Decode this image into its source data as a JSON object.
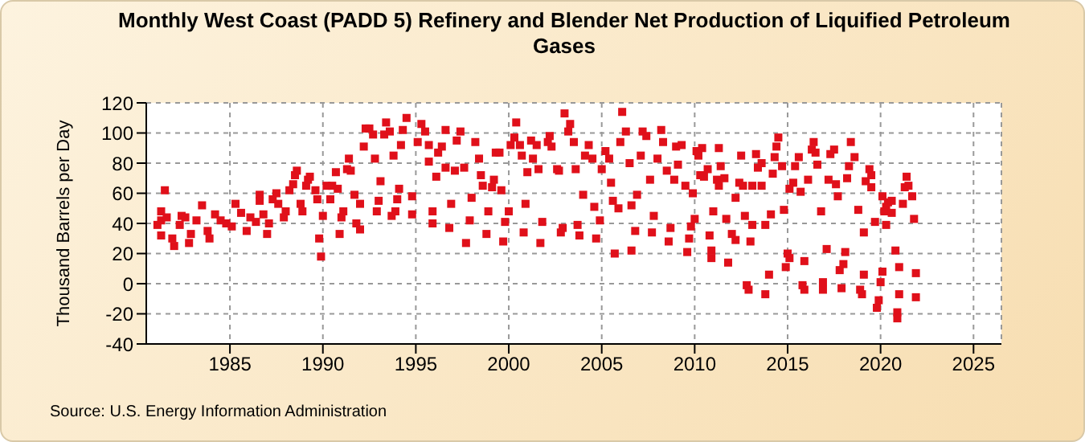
{
  "chart_data": {
    "type": "scatter",
    "title": "Monthly West Coast (PADD 5) Refinery and Blender Net Production of Liquified Petroleum Gases",
    "ylabel": "Thousand Barrels per Day",
    "annotations": [
      "Source: U.S. Energy Information Administration"
    ],
    "x": [
      1981.1,
      1981.3,
      1981.3,
      1981.5,
      1981.3,
      1981.6,
      1981.9,
      1982.0,
      1982.3,
      1982.4,
      1982.6,
      1982.8,
      1982.9,
      1983.2,
      1983.5,
      1983.8,
      1983.9,
      1984.2,
      1984.5,
      1984.8,
      1985.1,
      1985.3,
      1985.6,
      1985.9,
      1986.1,
      1986.4,
      1986.6,
      1986.6,
      1986.8,
      1987.0,
      1987.1,
      1987.3,
      1987.5,
      1987.6,
      1987.9,
      1988.0,
      1988.2,
      1988.4,
      1988.5,
      1988.6,
      1988.8,
      1988.9,
      1989.1,
      1989.2,
      1989.3,
      1989.6,
      1989.7,
      1989.8,
      1989.9,
      1990.0,
      1990.2,
      1990.4,
      1990.5,
      1990.7,
      1990.8,
      1990.9,
      1991.0,
      1991.1,
      1991.3,
      1991.4,
      1991.5,
      1991.7,
      1991.8,
      1992.0,
      1992.0,
      1992.2,
      1992.3,
      1992.5,
      1992.7,
      1992.8,
      1992.9,
      1993.0,
      1993.1,
      1993.3,
      1993.4,
      1993.6,
      1993.7,
      1993.8,
      1994.0,
      1994.1,
      1994.2,
      1994.3,
      1994.5,
      1993.9,
      1994.8,
      1994.8,
      1995.1,
      1995.3,
      1995.5,
      1995.7,
      1995.7,
      1995.9,
      1995.9,
      1996.1,
      1996.2,
      1996.4,
      1996.6,
      1996.6,
      1996.8,
      1996.9,
      1997.1,
      1997.2,
      1997.4,
      1997.6,
      1997.7,
      1997.9,
      1998.0,
      1998.2,
      1998.4,
      1998.5,
      1998.6,
      1998.8,
      1998.9,
      1999.1,
      1999.2,
      1999.3,
      1999.5,
      1999.6,
      1999.7,
      1999.8,
      2000.0,
      2000.1,
      2000.3,
      2000.4,
      2000.6,
      2000.7,
      2000.8,
      2000.9,
      2001.0,
      2001.2,
      2001.3,
      2001.5,
      2001.6,
      2001.7,
      2001.8,
      2002.1,
      2002.2,
      2002.3,
      2002.6,
      2002.7,
      2002.8,
      2002.9,
      2003.0,
      2003.2,
      2003.3,
      2003.5,
      2003.6,
      2003.7,
      2003.8,
      2004.0,
      2004.1,
      2004.3,
      2004.5,
      2004.6,
      2004.7,
      2004.9,
      2005.0,
      2005.2,
      2005.4,
      2005.5,
      2005.6,
      2005.7,
      2005.9,
      2006.0,
      2006.1,
      2006.3,
      2006.5,
      2006.6,
      2006.6,
      2006.8,
      2006.9,
      2007.1,
      2007.2,
      2007.4,
      2007.6,
      2007.7,
      2007.8,
      2008.0,
      2008.2,
      2008.3,
      2008.5,
      2008.6,
      2008.7,
      2008.9,
      2009.0,
      2009.1,
      2009.3,
      2009.5,
      2009.6,
      2009.7,
      2009.9,
      2010.1,
      2010.2,
      2010.3,
      2009.8,
      2010.0,
      2010.4,
      2010.5,
      2010.7,
      2010.8,
      2010.9,
      2010.9,
      2011.0,
      2011.2,
      2011.3,
      2011.3,
      2011.4,
      2011.6,
      2011.7,
      2011.8,
      2012.0,
      2012.2,
      2012.2,
      2012.4,
      2012.5,
      2012.6,
      2012.7,
      2012.8,
      2012.9,
      2013.0,
      2013.1,
      2013.1,
      2013.3,
      2013.4,
      2013.6,
      2013.6,
      2013.8,
      2013.8,
      2014.0,
      2014.1,
      2014.2,
      2014.3,
      2014.4,
      2014.5,
      2014.7,
      2014.8,
      2014.9,
      2015.0,
      2015.1,
      2015.1,
      2015.3,
      2015.4,
      2015.6,
      2015.7,
      2015.8,
      2015.9,
      2015.9,
      2016.1,
      2016.3,
      2016.4,
      2016.5,
      2016.6,
      2016.8,
      2016.9,
      2016.9,
      2017.1,
      2017.2,
      2017.3,
      2017.5,
      2017.6,
      2017.7,
      2017.8,
      2017.9,
      2018.0,
      2018.1,
      2018.2,
      2018.3,
      2018.4,
      2018.6,
      2018.8,
      2018.9,
      2019.0,
      2019.1,
      2019.1,
      2019.2,
      2019.4,
      2019.5,
      2019.5,
      2019.7,
      2019.8,
      2019.9,
      2020.0,
      2020.1,
      2020.1,
      2020.2,
      2020.3,
      2020.3,
      2020.4,
      2020.6,
      2020.6,
      2020.8,
      2020.9,
      2020.9,
      2021.0,
      2021.0,
      2021.2,
      2021.3,
      2021.4,
      2021.5,
      2021.7,
      2021.8,
      2021.9,
      2021.9
    ],
    "values": [
      39,
      42,
      48,
      62,
      32,
      44,
      30,
      25,
      39,
      45,
      44,
      27,
      33,
      42,
      52,
      35,
      30,
      46,
      42,
      40,
      38,
      53,
      47,
      35,
      44,
      41,
      59,
      55,
      46,
      33,
      40,
      56,
      60,
      53,
      44,
      48,
      62,
      66,
      72,
      75,
      53,
      48,
      65,
      69,
      71,
      62,
      56,
      30,
      18,
      45,
      65,
      56,
      65,
      74,
      63,
      33,
      44,
      48,
      76,
      83,
      75,
      59,
      40,
      36,
      53,
      91,
      103,
      103,
      99,
      83,
      48,
      55,
      68,
      99,
      107,
      101,
      45,
      85,
      56,
      63,
      92,
      102,
      110,
      48,
      46,
      58,
      94,
      106,
      101,
      92,
      81,
      48,
      40,
      71,
      87,
      91,
      102,
      77,
      37,
      53,
      75,
      95,
      101,
      77,
      27,
      42,
      57,
      94,
      83,
      72,
      65,
      33,
      48,
      64,
      69,
      87,
      87,
      62,
      28,
      41,
      48,
      92,
      97,
      107,
      92,
      85,
      34,
      53,
      74,
      95,
      83,
      92,
      76,
      27,
      41,
      94,
      98,
      91,
      76,
      75,
      34,
      37,
      113,
      101,
      106,
      94,
      76,
      39,
      32,
      59,
      85,
      92,
      83,
      51,
      30,
      42,
      76,
      88,
      83,
      67,
      55,
      20,
      50,
      94,
      114,
      101,
      80,
      52,
      22,
      35,
      59,
      85,
      101,
      98,
      69,
      34,
      45,
      83,
      102,
      94,
      75,
      28,
      37,
      69,
      91,
      79,
      92,
      65,
      21,
      30,
      60,
      88,
      85,
      72,
      38,
      43,
      90,
      71,
      76,
      32,
      17,
      22,
      48,
      69,
      90,
      65,
      78,
      70,
      43,
      14,
      33,
      29,
      57,
      67,
      85,
      65,
      45,
      -1,
      -4,
      28,
      39,
      65,
      86,
      77,
      80,
      65,
      39,
      -7,
      6,
      46,
      73,
      84,
      91,
      97,
      78,
      49,
      11,
      20,
      17,
      63,
      67,
      78,
      84,
      61,
      -1,
      -4,
      15,
      69,
      89,
      94,
      87,
      79,
      48,
      1,
      -4,
      23,
      69,
      86,
      89,
      66,
      58,
      9,
      -3,
      13,
      21,
      70,
      78,
      94,
      84,
      49,
      -4,
      -7,
      6,
      34,
      68,
      76,
      72,
      64,
      41,
      -16,
      -11,
      1,
      8,
      58,
      48,
      39,
      51,
      54,
      55,
      47,
      22,
      -19,
      -23,
      11,
      -7,
      53,
      64,
      71,
      65,
      58,
      43,
      7,
      -9
    ],
    "color": "#e0101a",
    "marker": "square",
    "grid": true,
    "xlim": [
      1980.5,
      2026.5
    ],
    "xticks": [
      1985,
      1990,
      1995,
      2000,
      2005,
      2010,
      2015,
      2020,
      2025
    ],
    "ylim": [
      -40,
      120
    ],
    "yticks": [
      -40,
      -20,
      0,
      20,
      40,
      60,
      80,
      100,
      120
    ]
  }
}
